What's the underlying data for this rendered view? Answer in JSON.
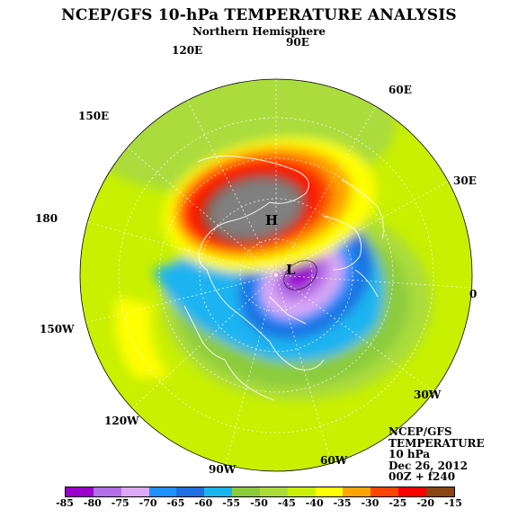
{
  "title": "NCEP/GFS 10-hPa TEMPERATURE ANALYSIS",
  "subtitle": "Northern Hemisphere",
  "longitude_labels": [
    {
      "key": "90e",
      "text": "90E"
    },
    {
      "key": "120e",
      "text": "120E"
    },
    {
      "key": "60e",
      "text": "60E"
    },
    {
      "key": "150e",
      "text": "150E"
    },
    {
      "key": "30e",
      "text": "30E"
    },
    {
      "key": "180",
      "text": "180"
    },
    {
      "key": "0",
      "text": "0"
    },
    {
      "key": "150w",
      "text": "150W"
    },
    {
      "key": "30w",
      "text": "30W"
    },
    {
      "key": "120w",
      "text": "120W"
    },
    {
      "key": "60w",
      "text": "60W"
    },
    {
      "key": "90w",
      "text": "90W"
    }
  ],
  "pressure_centers": {
    "high": "H",
    "low": "L"
  },
  "info": {
    "line1": "NCEP/GFS",
    "line2": "TEMPERATURE",
    "line3": "10 hPa",
    "line4": "Dec 26, 2012",
    "line5": "00Z + f240"
  },
  "colorbar": {
    "ticks": [
      "-85",
      "-80",
      "-75",
      "-70",
      "-65",
      "-60",
      "-55",
      "-50",
      "-45",
      "-40",
      "-35",
      "-30",
      "-25",
      "-20",
      "-15"
    ],
    "colors": [
      "#9900cc",
      "#b370e6",
      "#dcaaf5",
      "#1e90ff",
      "#1e6fe0",
      "#1ab4f0",
      "#8ccc3c",
      "#aadc3c",
      "#c8f000",
      "#ffff00",
      "#ffa500",
      "#ff4500",
      "#ff0000",
      "#8b4513",
      "#808080"
    ]
  }
}
